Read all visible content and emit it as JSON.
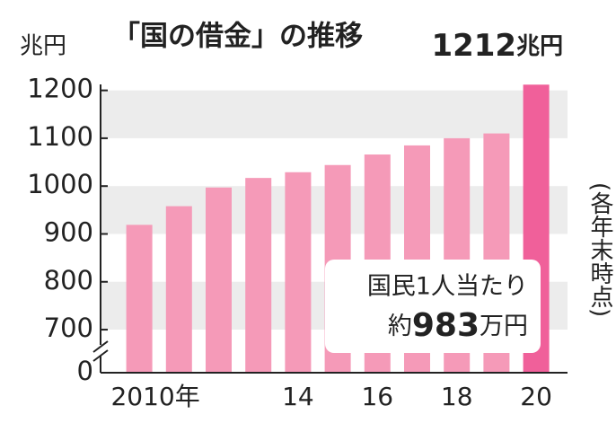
{
  "chart_data": {
    "type": "bar",
    "title": "「国の借金」の推移",
    "ylabel": "兆円",
    "value_unit": "兆円",
    "note": "(各年末時点)",
    "categories": [
      "2010年",
      null,
      null,
      null,
      "14",
      null,
      "16",
      null,
      "18",
      null,
      "20"
    ],
    "values": [
      919,
      958,
      997,
      1017,
      1029,
      1044,
      1066,
      1085,
      1100,
      1110,
      1212
    ],
    "colors": [
      "#f59ab8",
      "#f59ab8",
      "#f59ab8",
      "#f59ab8",
      "#f59ab8",
      "#f59ab8",
      "#f59ab8",
      "#f59ab8",
      "#f59ab8",
      "#f59ab8",
      "#f0609a"
    ],
    "ylim": [
      0,
      1250
    ],
    "ybreak": [
      0,
      610
    ],
    "yticks": [
      0,
      700,
      800,
      900,
      1000,
      1100,
      1200
    ],
    "grid": "bands",
    "annotation": {
      "line1": "国民1人当たり",
      "line2": [
        "約",
        "983",
        "万円"
      ]
    }
  }
}
